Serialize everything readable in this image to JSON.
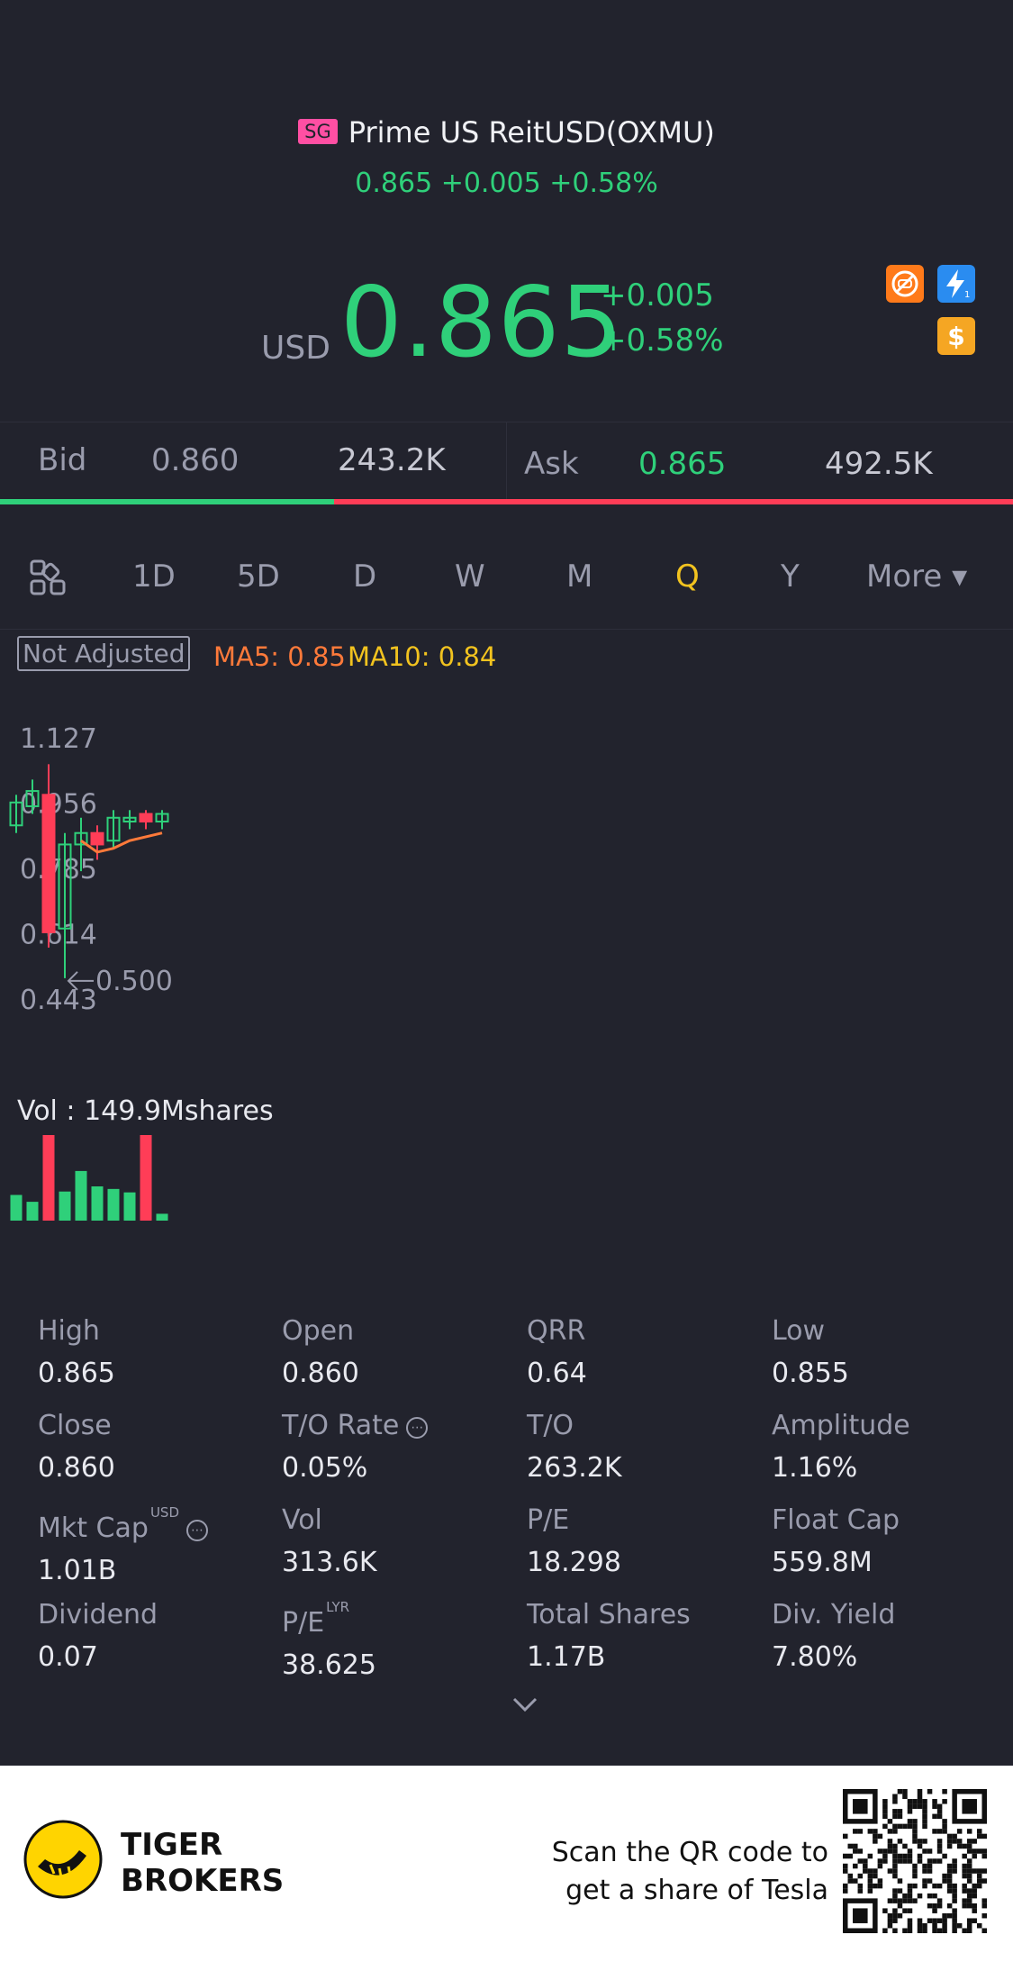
{
  "header": {
    "market_badge": "SG",
    "title": "Prime US ReitUSD(OXMU)",
    "summary": "0.865 +0.005 +0.58%",
    "currency": "USD",
    "price": "0.865",
    "change": "+0.005",
    "change_pct": "+0.58%",
    "icons": [
      "no-shorting-icon",
      "lightning-icon",
      "dollar-icon"
    ]
  },
  "bidask": {
    "bid_label": "Bid",
    "bid_price": "0.860",
    "bid_size": "243.2K",
    "ask_label": "Ask",
    "ask_price": "0.865",
    "ask_size": "492.5K",
    "bid_share": 0.33
  },
  "tabs": [
    {
      "label": "1D"
    },
    {
      "label": "5D"
    },
    {
      "label": "D"
    },
    {
      "label": "W"
    },
    {
      "label": "M"
    },
    {
      "label": "Q",
      "active": true
    },
    {
      "label": "Y"
    },
    {
      "label": "More ▾"
    }
  ],
  "indicators": {
    "adjust_label": "Not Adjusted",
    "ma5": "MA5: 0.85",
    "ma10": "MA10: 0.84"
  },
  "chart_data": {
    "type": "candlestick",
    "y_ticks": [
      "1.127",
      "0.956",
      "0.785",
      "0.614",
      "0.443"
    ],
    "ylim": [
      0.443,
      1.127
    ],
    "min_marker": "0.500",
    "vol_label": "Vol  : 149.9Mshares",
    "candles": [
      {
        "o": 0.9,
        "c": 0.96,
        "h": 0.98,
        "l": 0.88,
        "up": true
      },
      {
        "o": 0.95,
        "c": 0.99,
        "h": 1.02,
        "l": 0.93,
        "up": true
      },
      {
        "o": 0.98,
        "c": 0.62,
        "h": 1.06,
        "l": 0.58,
        "up": false
      },
      {
        "o": 0.63,
        "c": 0.85,
        "h": 0.88,
        "l": 0.5,
        "up": true
      },
      {
        "o": 0.85,
        "c": 0.88,
        "h": 0.92,
        "l": 0.78,
        "up": true
      },
      {
        "o": 0.88,
        "c": 0.85,
        "h": 0.9,
        "l": 0.81,
        "up": false
      },
      {
        "o": 0.86,
        "c": 0.92,
        "h": 0.94,
        "l": 0.84,
        "up": true
      },
      {
        "o": 0.91,
        "c": 0.92,
        "h": 0.94,
        "l": 0.89,
        "up": true
      },
      {
        "o": 0.93,
        "c": 0.91,
        "h": 0.94,
        "l": 0.89,
        "up": false
      },
      {
        "o": 0.91,
        "c": 0.93,
        "h": 0.94,
        "l": 0.89,
        "up": true
      }
    ],
    "ma": [
      null,
      null,
      null,
      null,
      0.86,
      0.83,
      0.84,
      0.86,
      0.87,
      0.88
    ],
    "volumes": [
      0.3,
      0.22,
      1.0,
      0.34,
      0.58,
      0.4,
      0.37,
      0.33,
      1.0,
      0.08
    ],
    "vol_up": [
      true,
      true,
      false,
      true,
      true,
      true,
      true,
      true,
      false,
      true
    ]
  },
  "stats": [
    {
      "k": "High",
      "v": "0.865"
    },
    {
      "k": "Open",
      "v": "0.860"
    },
    {
      "k": "QRR",
      "v": "0.64"
    },
    {
      "k": "Low",
      "v": "0.855"
    },
    {
      "k": "Close",
      "v": "0.860"
    },
    {
      "k": "T/O Rate",
      "v": "0.05%",
      "info": true
    },
    {
      "k": "T/O",
      "v": "263.2K"
    },
    {
      "k": "Amplitude",
      "v": "1.16%"
    },
    {
      "k": "Mkt Cap",
      "v": "1.01B",
      "sup": "USD",
      "info": true
    },
    {
      "k": "Vol",
      "v": "313.6K"
    },
    {
      "k": "P/E",
      "v": "18.298"
    },
    {
      "k": "Float Cap",
      "v": "559.8M"
    },
    {
      "k": "Dividend",
      "v": "0.07"
    },
    {
      "k": "P/E",
      "v": "38.625",
      "sup": "LYR"
    },
    {
      "k": "Total Shares",
      "v": "1.17B"
    },
    {
      "k": "Div. Yield",
      "v": "7.80%"
    }
  ],
  "footer": {
    "brand_line1": "TIGER",
    "brand_line2": "BROKERS",
    "scan_line1": "Scan the QR code to",
    "scan_line2": "get a share of Tesla"
  },
  "colors": {
    "up": "#2fd07a",
    "down": "#ff3d57",
    "ma5": "#ff7a3a",
    "ma10": "#f2c31f"
  }
}
